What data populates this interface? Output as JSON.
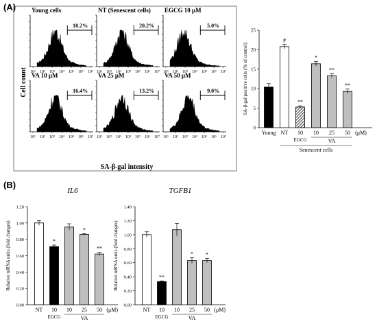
{
  "panel_a_label": "(A)",
  "panel_b_label": "(B)",
  "flow": {
    "ylabel": "Cell count",
    "xlabel": "SA-β-gal intensity",
    "xticks": [
      "10¹",
      "10²",
      "10³",
      "10⁴",
      "10⁵",
      "10⁶",
      "10⁷"
    ]
  },
  "chart_data": [
    {
      "type": "histogram",
      "name": "flow-histograms",
      "panels": [
        {
          "title": "Young cells",
          "gate_percent": "10.2%"
        },
        {
          "title": "NT (Senescent cells)",
          "gate_percent": "20.2%"
        },
        {
          "title": "EGCG 10 μM",
          "gate_percent": "5.0%"
        },
        {
          "title": "VA 10 μM",
          "gate_percent": "16.4%"
        },
        {
          "title": "VA 25 μM",
          "gate_percent": "13.2%"
        },
        {
          "title": "VA 50 μM",
          "gate_percent": "9.0%"
        }
      ]
    },
    {
      "type": "bar",
      "name": "sa-beta-gal",
      "ylabel": "SA-β-gal positive cells (% of control)",
      "ylim": [
        0,
        25
      ],
      "yticks": [
        0,
        5,
        10,
        15,
        20,
        25
      ],
      "categories": [
        "Young",
        "NT",
        "10",
        "10",
        "25",
        "50"
      ],
      "values": [
        10.4,
        20.8,
        5.3,
        16.4,
        13.3,
        9.3
      ],
      "errors": [
        0.9,
        0.6,
        0.3,
        0.6,
        0.5,
        0.6
      ],
      "styles": [
        "black",
        "white",
        "hatch",
        "gray",
        "gray",
        "gray"
      ],
      "marks": [
        "",
        "#",
        "**",
        "*",
        "**",
        "**"
      ],
      "unit": "(μM)",
      "group_labels": {
        "egcg": "EGCG",
        "va": "VA",
        "senescent": "Senescent cells"
      }
    },
    {
      "type": "bar",
      "name": "il6",
      "title": "IL6",
      "ylabel": "Relative mRNA units (fold changes)",
      "ylim": [
        0,
        1.2
      ],
      "yticks": [
        "0.00",
        "0.20",
        "0.40",
        "0.60",
        "0.80",
        "1.00",
        "1.20"
      ],
      "categories": [
        "NT",
        "10",
        "10",
        "25",
        "50"
      ],
      "values": [
        1.0,
        0.71,
        0.95,
        0.86,
        0.62
      ],
      "errors": [
        0.03,
        0.02,
        0.04,
        0.01,
        0.02
      ],
      "styles": [
        "white",
        "black",
        "gray",
        "gray",
        "gray"
      ],
      "marks": [
        "",
        "*",
        "",
        "*",
        "**"
      ],
      "unit": "(μM)",
      "group_labels": {
        "egcg": "EGCG",
        "va": "VA"
      }
    },
    {
      "type": "bar",
      "name": "tgfb1",
      "title": "TGFB1",
      "ylabel": "Relative mRNA units (fold changes)",
      "ylim": [
        0,
        1.4
      ],
      "yticks": [
        "0.00",
        "0.20",
        "0.40",
        "0.60",
        "0.80",
        "1.00",
        "1.20",
        "1.40"
      ],
      "categories": [
        "NT",
        "10",
        "10",
        "25",
        "50"
      ],
      "values": [
        1.0,
        0.33,
        1.07,
        0.63,
        0.63
      ],
      "errors": [
        0.04,
        0.01,
        0.09,
        0.04,
        0.03
      ],
      "styles": [
        "white",
        "black",
        "gray",
        "gray",
        "gray"
      ],
      "marks": [
        "",
        "**",
        "",
        "*",
        "*"
      ],
      "unit": "(μM)",
      "group_labels": {
        "egcg": "EGCG",
        "va": "VA"
      }
    }
  ]
}
